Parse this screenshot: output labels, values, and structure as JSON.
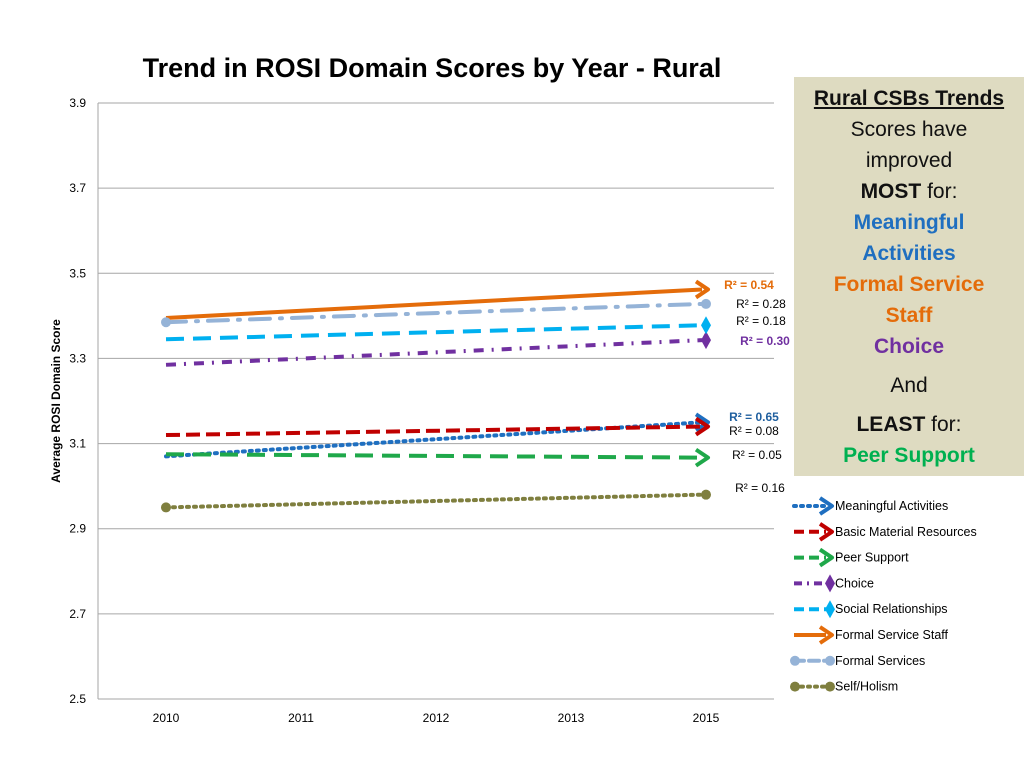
{
  "chart_data": {
    "type": "line",
    "title": "Trend in ROSI Domain Scores by Year - Rural",
    "ylabel": "Average ROSI Domain Score",
    "xlabel": "",
    "categories": [
      "2010",
      "2011",
      "2012",
      "2013",
      "2015"
    ],
    "ylim": [
      2.5,
      3.9
    ],
    "yticks": [
      "2.5",
      "2.7",
      "2.9",
      "3.1",
      "3.3",
      "3.5",
      "3.7",
      "3.9"
    ],
    "grid": true,
    "legend_position": "right",
    "series": [
      {
        "name": "Meaningful Activities",
        "color": "#1f6fc0",
        "dash": "dot",
        "marker": "arrow",
        "start": 3.07,
        "end": 3.15,
        "r2": "R² = 0.65",
        "r2_color": "#1f5f9f",
        "r2_bold": true
      },
      {
        "name": "Basic Material Resources",
        "color": "#c00000",
        "dash": "dash",
        "marker": "arrow",
        "start": 3.12,
        "end": 3.14,
        "r2": "R² = 0.08",
        "r2_color": "#000000",
        "r2_bold": false
      },
      {
        "name": "Peer Support",
        "color": "#1fa84a",
        "dash": "longdash",
        "marker": "arrow",
        "start": 3.075,
        "end": 3.067,
        "r2": "R² = 0.05",
        "r2_color": "#000000",
        "r2_bold": false
      },
      {
        "name": "Choice",
        "color": "#7030a0",
        "dash": "dashdot",
        "marker": "diamond",
        "start": 3.285,
        "end": 3.343,
        "r2": "R² = 0.30",
        "r2_color": "#7030a0",
        "r2_bold": true
      },
      {
        "name": "Social Relationships",
        "color": "#00b0f0",
        "dash": "longdash",
        "marker": "diamond",
        "start": 3.345,
        "end": 3.378,
        "r2": "R² = 0.18",
        "r2_color": "#000000",
        "r2_bold": false
      },
      {
        "name": "Formal Service Staff",
        "color": "#e46c0a",
        "dash": "solid",
        "marker": "arrow",
        "start": 3.395,
        "end": 3.462,
        "r2": "R² = 0.54",
        "r2_color": "#e46c0a",
        "r2_bold": true
      },
      {
        "name": "Formal  Services",
        "color": "#95b3d7",
        "dash": "longdashdot",
        "marker": "circle",
        "start": 3.385,
        "end": 3.428,
        "r2": "R² = 0.28",
        "r2_color": "#000000",
        "r2_bold": false
      },
      {
        "name": "Self/Holism",
        "color": "#7f7f3f",
        "dash": "dot",
        "marker": "circle",
        "start": 2.95,
        "end": 2.98,
        "r2": "R² = 0.16",
        "r2_color": "#000000",
        "r2_bold": false
      }
    ]
  },
  "side_panel": {
    "heading": "Rural CSBs Trends",
    "line1": "Scores have",
    "line2": "improved",
    "most_label": "MOST",
    "for1": " for:",
    "item1a": "Meaningful",
    "item1b": "Activities",
    "item2a": "Formal Service",
    "item2b": "Staff",
    "item3": "Choice",
    "and": "And",
    "least_label": "LEAST",
    "for2": " for:",
    "item4": "Peer Support",
    "colors": {
      "meaningful": "#1f6fc0",
      "formal": "#e46c0a",
      "choice": "#7030a0",
      "peer": "#00b050"
    }
  }
}
